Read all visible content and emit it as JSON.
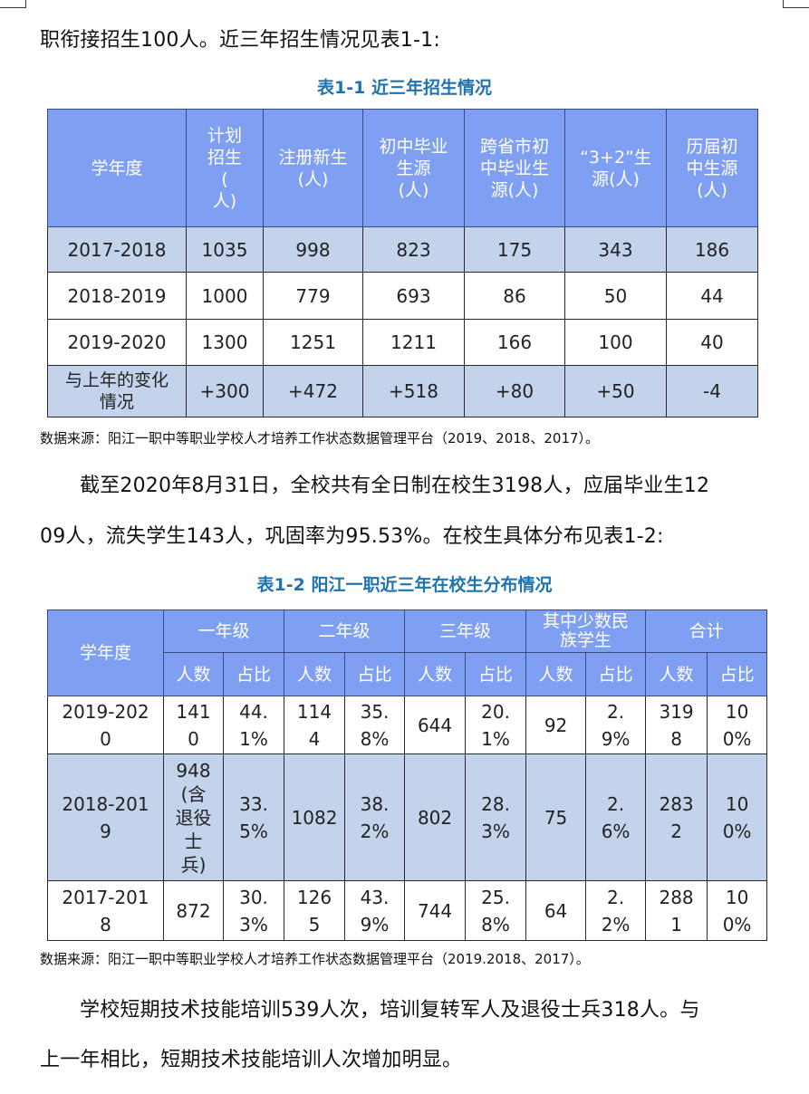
{
  "para1": "职衔接招生100人。近三年招生情况见表1-1:",
  "table1": {
    "caption": "表1-1  近三年招生情况",
    "headers": [
      "学年度",
      "计划\n招生\n(\n人)",
      "注册新生\n(人)",
      "初中毕业\n生源\n(人)",
      "跨省市初\n中毕业生\n源(人)",
      "“3+2”生\n源(人)",
      "历届初\n中生源\n(人)"
    ],
    "rows": [
      [
        "2017-2018",
        "1035",
        "998",
        "823",
        "175",
        "343",
        "186"
      ],
      [
        "2018-2019",
        "1000",
        "779",
        "693",
        "86",
        "50",
        "44"
      ],
      [
        "2019-2020",
        "1300",
        "1251",
        "1211",
        "166",
        "100",
        "40"
      ],
      [
        "与上年的变化\n情况",
        "+300",
        "+472",
        "+518",
        "+80",
        "+50",
        "-4"
      ]
    ],
    "source": "数据来源：阳江一职中等职业学校人才培养工作状态数据管理平台（2019、2018、2017）。"
  },
  "para2_line1": "截至2020年8月31日，全校共有全日制在校生3198人，应届毕业生12",
  "para2_line2": "09人，流失学生143人，巩固率为95.53%。在校生具体分布见表1-2:",
  "table2": {
    "caption": "表1-2  阳江一职近三年在校生分布情况",
    "header_year": "学年度",
    "groups": [
      "一年级",
      "二年级",
      "三年级",
      "其中少数民\n族学生",
      "合计"
    ],
    "sub": [
      "人数",
      "占比"
    ],
    "rows": [
      [
        "2019-202\n0",
        "141\n0",
        "44.\n1%",
        "114\n4",
        "35.\n8%",
        "644",
        "20.\n1%",
        "92",
        "2.\n9%",
        "319\n8",
        "10\n0%"
      ],
      [
        "2018-201\n9",
        "948\n(含\n退役\n士\n兵)",
        "33.\n5%",
        "1082",
        "38.\n2%",
        "802",
        "28.\n3%",
        "75",
        "2.\n6%",
        "283\n2",
        "10\n0%"
      ],
      [
        "2017-201\n8",
        "872",
        "30.\n3%",
        "126\n5",
        "43.\n9%",
        "744",
        "25.\n8%",
        "64",
        "2.\n2%",
        "288\n1",
        "10\n0%"
      ]
    ],
    "source": "数据来源：阳江一职中等职业学校人才培养工作状态数据管理平台（2019.2018、2017）。"
  },
  "para3_line1": "学校短期技术技能培训539人次，培训复转军人及退役士兵318人。与",
  "para3_line2": "上一年相比，短期技术技能培训人次增加明显。"
}
